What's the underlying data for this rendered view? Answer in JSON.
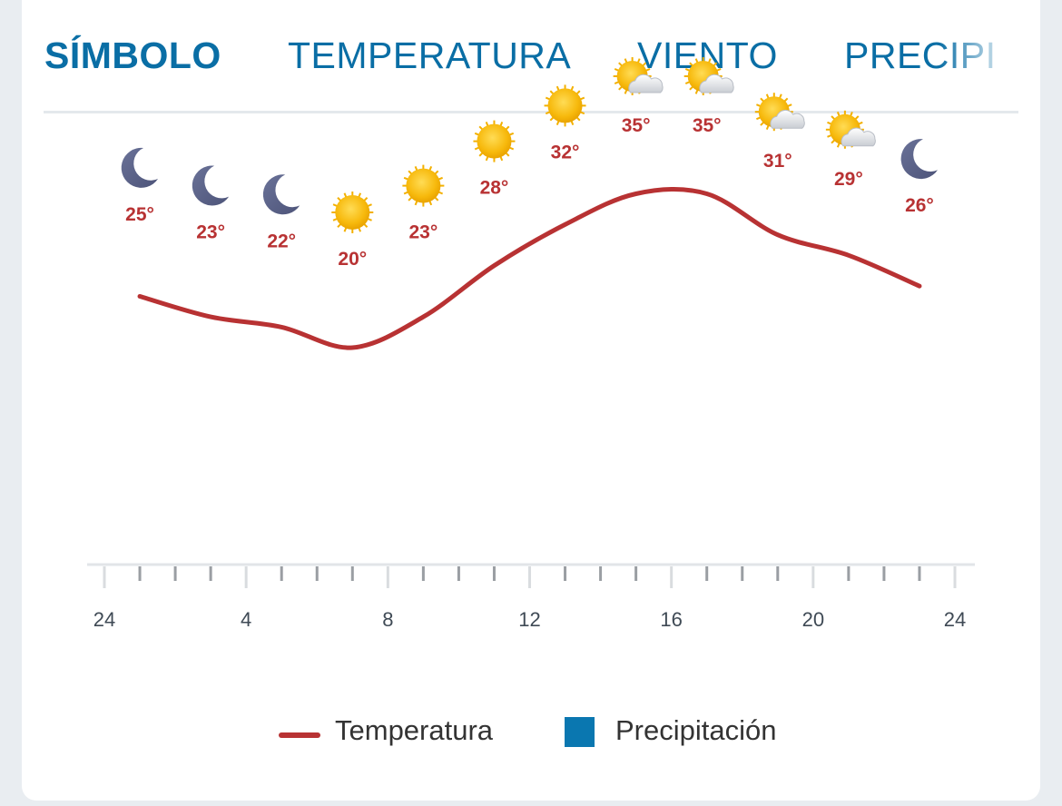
{
  "tabs": [
    {
      "label": "SÍMBOLO",
      "active": true
    },
    {
      "label": "TEMPERATURA",
      "active": false
    },
    {
      "label": "VIENTO",
      "active": false
    },
    {
      "label": "PRECIPI",
      "active": false
    }
  ],
  "colors": {
    "accent": "#0a6ea5",
    "temperature_line": "#b83233",
    "precipitation": "#0a77b0"
  },
  "legend": {
    "temperature_label": "Temperatura",
    "precipitation_label": "Precipitación"
  },
  "chart_data": {
    "type": "line",
    "x_ticks": [
      "24",
      "4",
      "8",
      "12",
      "16",
      "20",
      "24"
    ],
    "x_tick_values": [
      0,
      4,
      8,
      12,
      16,
      20,
      24
    ],
    "xlim": [
      0,
      24
    ],
    "series": [
      {
        "name": "Temperatura",
        "x": [
          1,
          3,
          5,
          7,
          9,
          11,
          13,
          15,
          17,
          19,
          21,
          23
        ],
        "values": [
          25,
          23,
          22,
          20,
          23,
          28,
          32,
          35,
          35,
          31,
          29,
          26
        ],
        "unit": "°"
      }
    ],
    "point_labels": [
      "25°",
      "23°",
      "22°",
      "20°",
      "23°",
      "28°",
      "32°",
      "35°",
      "35°",
      "31°",
      "29°",
      "26°"
    ],
    "symbols": [
      "moon-icon",
      "moon-icon",
      "moon-icon",
      "sun-icon",
      "sun-icon",
      "sun-icon",
      "sun-icon",
      "sun-cloud-icon",
      "sun-cloud-icon",
      "sun-cloud-icon",
      "sun-cloud-icon",
      "moon-icon"
    ],
    "grid": false,
    "legend_position": "bottom"
  }
}
